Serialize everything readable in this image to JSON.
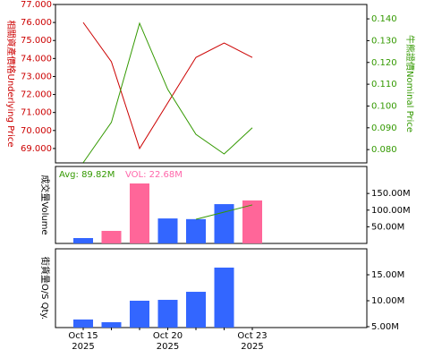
{
  "chart_data": [
    {
      "type": "line",
      "y_label": "相關資產價格Underlying Price",
      "y_label_color": "#cc0000",
      "y2_label": "牛熊證價Nominal Price",
      "y2_label_color": "#339900",
      "ylim": [
        68.2,
        77.0
      ],
      "yticks": [
        {
          "value": 69,
          "label": "69.000"
        },
        {
          "value": 70,
          "label": "70.000"
        },
        {
          "value": 71,
          "label": "71.000"
        },
        {
          "value": 72,
          "label": "72.000"
        },
        {
          "value": 73,
          "label": "73.000"
        },
        {
          "value": 74,
          "label": "74.000"
        },
        {
          "value": 75,
          "label": "75.000"
        },
        {
          "value": 76,
          "label": "76.000"
        },
        {
          "value": 77,
          "label": "77.000"
        }
      ],
      "y2lim": [
        0.0739,
        0.1466
      ],
      "y2ticks": [
        {
          "value": 0.08,
          "label": "0.080"
        },
        {
          "value": 0.09,
          "label": "0.090"
        },
        {
          "value": 0.1,
          "label": "0.100"
        },
        {
          "value": 0.11,
          "label": "0.110"
        },
        {
          "value": 0.12,
          "label": "0.120"
        },
        {
          "value": 0.13,
          "label": "0.130"
        },
        {
          "value": 0.14,
          "label": "0.140"
        }
      ],
      "series": [
        {
          "color": "#cc0000",
          "values": [
            76.0,
            73.82,
            69.0,
            71.53,
            74.06,
            74.86,
            74.06
          ]
        },
        {
          "color": "#339900",
          "axis": "y2",
          "values": [
            0.074,
            0.0925,
            0.138,
            0.1076,
            0.087,
            0.078,
            0.09
          ]
        }
      ]
    },
    {
      "type": "bar",
      "y_label": "成交量Volume",
      "ylim": [
        0,
        231
      ],
      "yticks": [
        {
          "value": 50,
          "label": "50.00M"
        },
        {
          "value": 100,
          "label": "100.00M"
        },
        {
          "value": 150,
          "label": "150.00M"
        }
      ],
      "values": [
        16.1,
        37.7,
        180,
        75,
        73,
        118,
        129
      ],
      "colors": [
        "#3366ff",
        "#ff6699",
        "#ff6699",
        "#3366ff",
        "#3366ff",
        "#3366ff",
        "#ff6699"
      ],
      "line": {
        "color": "#339900",
        "values": [
          null,
          null,
          null,
          null,
          72.6,
          94,
          115.7
        ]
      },
      "annotations": [
        {
          "text": "Avg: 89.82M",
          "color": "#339900"
        },
        {
          "text": "VOL: 22.68M",
          "color": "#ff66aa"
        }
      ]
    },
    {
      "type": "bar",
      "y_label": "街貨量O/S Qty.",
      "ylim": [
        4.83,
        20
      ],
      "yticks": [
        {
          "value": 5,
          "label": "5.00M"
        },
        {
          "value": 10,
          "label": "10.00M"
        },
        {
          "value": 15,
          "label": "15.00M"
        }
      ],
      "values": [
        6.38,
        5.86,
        10.0,
        10.17,
        11.72,
        16.38,
        null
      ],
      "color": "#3366ff",
      "categories": [
        "Oct 15\n2025",
        null,
        null,
        "Oct 20\n2025",
        null,
        null,
        "Oct 23\n2025"
      ]
    }
  ]
}
